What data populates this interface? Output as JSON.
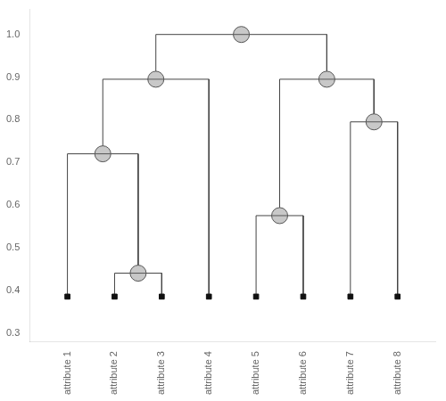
{
  "chart_data": {
    "type": "dendrogram",
    "categories": [
      "attribute 1",
      "attribute 2",
      "attribute 3",
      "attribute 4",
      "attribute 5",
      "attribute 6",
      "attribute 7",
      "attribute 8"
    ],
    "leaf_x": [
      1,
      2,
      3,
      4,
      5,
      6,
      7,
      8
    ],
    "leaf_y": 0.385,
    "merges": [
      {
        "lx": 2,
        "rx": 3,
        "h": 0.44,
        "lb": 0.385,
        "rb": 0.385
      },
      {
        "lx": 1,
        "rx": 2.5,
        "h": 0.72,
        "lb": 0.385,
        "rb": 0.44
      },
      {
        "lx": 1.75,
        "rx": 4,
        "h": 0.895,
        "lb": 0.72,
        "rb": 0.385
      },
      {
        "lx": 5,
        "rx": 6,
        "h": 0.575,
        "lb": 0.385,
        "rb": 0.385
      },
      {
        "lx": 7,
        "rx": 8,
        "h": 0.795,
        "lb": 0.385,
        "rb": 0.385
      },
      {
        "lx": 5.5,
        "rx": 7.5,
        "h": 0.895,
        "lb": 0.575,
        "rb": 0.795
      },
      {
        "lx": 2.875,
        "rx": 6.5,
        "h": 1.0,
        "lb": 0.895,
        "rb": 0.895
      }
    ],
    "nodes": [
      {
        "x": 2.5,
        "y": 0.44
      },
      {
        "x": 1.75,
        "y": 0.72
      },
      {
        "x": 2.875,
        "y": 0.895
      },
      {
        "x": 5.5,
        "y": 0.575
      },
      {
        "x": 7.5,
        "y": 0.795
      },
      {
        "x": 6.5,
        "y": 0.895
      },
      {
        "x": 4.6875,
        "y": 1.0
      }
    ],
    "xlim": [
      0.2,
      8.8
    ],
    "ylim": [
      0.28,
      1.06
    ],
    "yticks": [
      0.3,
      0.4,
      0.5,
      0.6,
      0.7,
      0.8,
      0.9,
      {
        "value": 1.0,
        "label": "1.0"
      }
    ],
    "line_color": "#444444",
    "leaf_color": "#111111",
    "node_color": "#c8c8c8",
    "node_edgecolor": "#555555",
    "grid": false
  }
}
